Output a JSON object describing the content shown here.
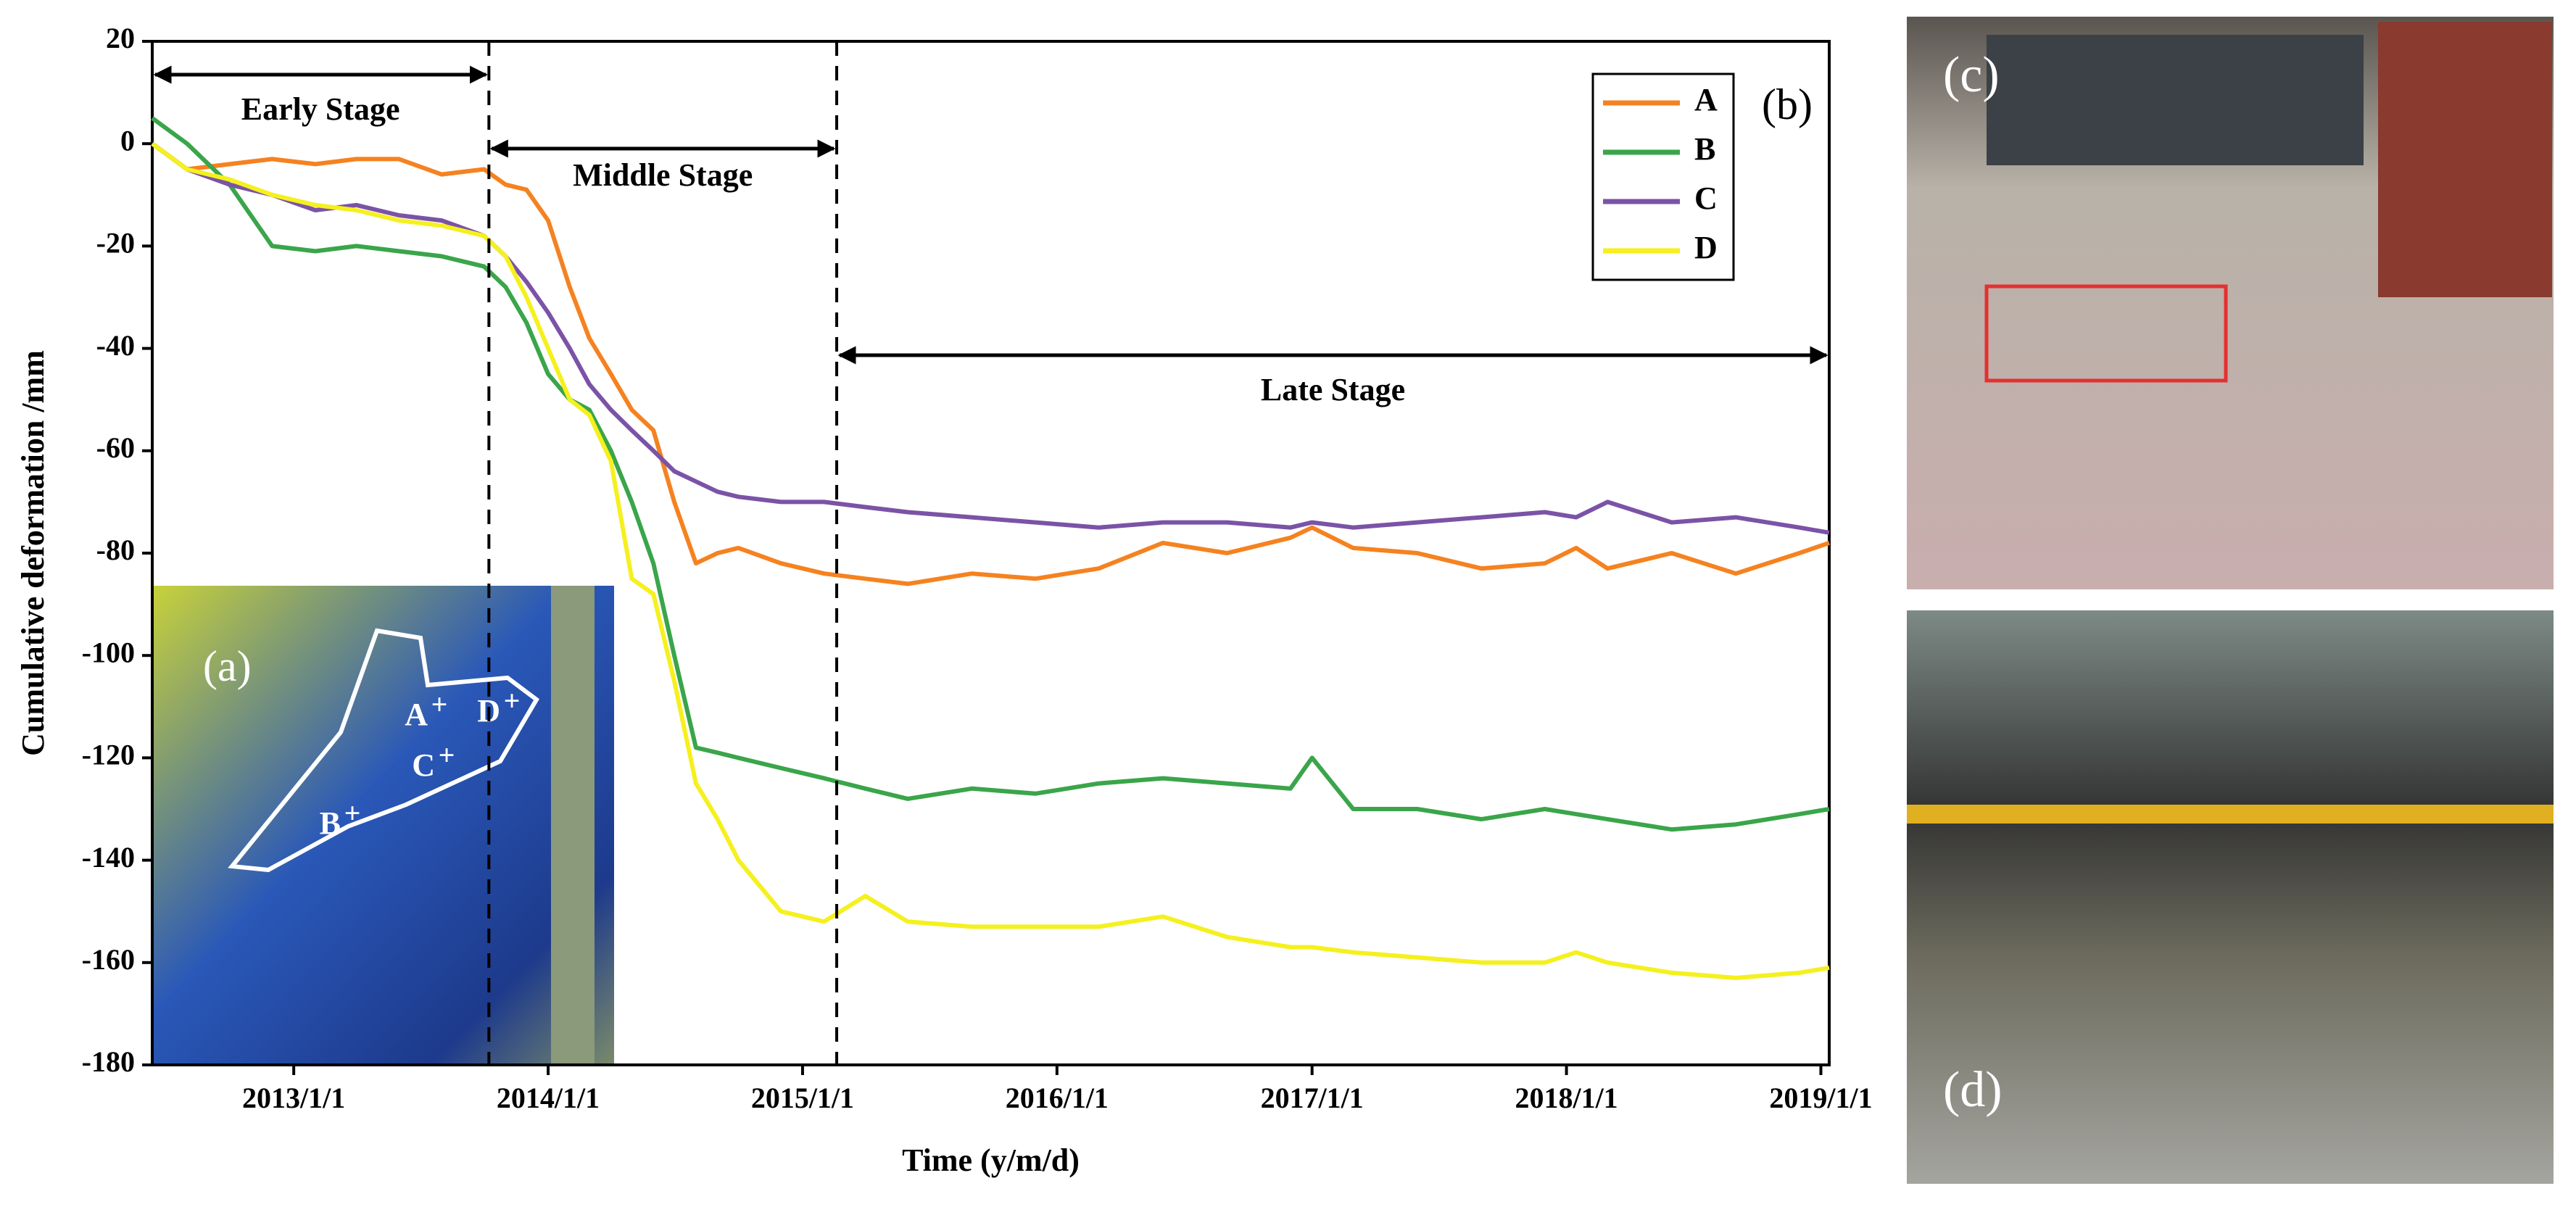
{
  "chart_data": {
    "type": "line",
    "xlabel": "Time (y/m/d)",
    "ylabel": "Cumulative deformation /mm",
    "panel_label": "(b)",
    "x": [
      "2012/6/12",
      "2012/8/1",
      "2012/10/1",
      "2012/12/1",
      "2013/2/1",
      "2013/4/1",
      "2013/6/1",
      "2013/8/1",
      "2013/10/1",
      "2013/11/1",
      "2013/12/1",
      "2014/1/1",
      "2014/2/1",
      "2014/3/1",
      "2014/4/1",
      "2014/5/1",
      "2014/6/1",
      "2014/7/1",
      "2014/8/1",
      "2014/9/1",
      "2014/10/1",
      "2014/12/1",
      "2015/2/1",
      "2015/4/1",
      "2015/6/1",
      "2015/9/1",
      "2015/12/1",
      "2016/3/1",
      "2016/6/1",
      "2016/9/1",
      "2016/12/1",
      "2017/1/1",
      "2017/3/1",
      "2017/6/1",
      "2017/9/1",
      "2017/12/1",
      "2018/1/15",
      "2018/3/1",
      "2018/6/1",
      "2018/9/1",
      "2018/12/1",
      "2019/1/13"
    ],
    "series": [
      {
        "name": "A",
        "color": "#f58220",
        "values": [
          0,
          -5,
          -4,
          -3,
          -4,
          -3,
          -3,
          -6,
          -5,
          -8,
          -9,
          -15,
          -28,
          -38,
          -45,
          -52,
          -56,
          -70,
          -82,
          -80,
          -79,
          -82,
          -84,
          -85,
          -86,
          -84,
          -85,
          -83,
          -78,
          -80,
          -77,
          -75,
          -79,
          -80,
          -83,
          -82,
          -79,
          -83,
          -80,
          -84,
          -80,
          -78
        ]
      },
      {
        "name": "B",
        "color": "#3aa54a",
        "values": [
          5,
          0,
          -8,
          -20,
          -21,
          -20,
          -21,
          -22,
          -24,
          -28,
          -35,
          -45,
          -50,
          -52,
          -60,
          -70,
          -82,
          -100,
          -118,
          -119,
          -120,
          -122,
          -124,
          -126,
          -128,
          -126,
          -127,
          -125,
          -124,
          -125,
          -126,
          -120,
          -130,
          -130,
          -132,
          -130,
          -131,
          -132,
          -134,
          -133,
          -131,
          -130
        ]
      },
      {
        "name": "C",
        "color": "#7b53a6",
        "values": [
          0,
          -5,
          -8,
          -10,
          -13,
          -12,
          -14,
          -15,
          -18,
          -22,
          -27,
          -33,
          -40,
          -47,
          -52,
          -56,
          -60,
          -64,
          -66,
          -68,
          -69,
          -70,
          -70,
          -71,
          -72,
          -73,
          -74,
          -75,
          -74,
          -74,
          -75,
          -74,
          -75,
          -74,
          -73,
          -72,
          -73,
          -70,
          -74,
          -73,
          -75,
          -76
        ]
      },
      {
        "name": "D",
        "color": "#f5f01e",
        "values": [
          0,
          -5,
          -7,
          -10,
          -12,
          -13,
          -15,
          -16,
          -18,
          -22,
          -30,
          -40,
          -50,
          -53,
          -62,
          -85,
          -88,
          -105,
          -125,
          -132,
          -140,
          -150,
          -152,
          -147,
          -152,
          -153,
          -153,
          -153,
          -151,
          -155,
          -157,
          -157,
          -158,
          -159,
          -160,
          -160,
          -158,
          -160,
          -162,
          -163,
          -162,
          -161
        ]
      }
    ],
    "xlim": [
      "2012/6/12",
      "2019/1/13"
    ],
    "xticks": [
      "2013/1/1",
      "2014/1/1",
      "2015/1/1",
      "2016/1/1",
      "2017/1/1",
      "2018/1/1",
      "2019/1/1"
    ],
    "ylim": [
      -180,
      20
    ],
    "yticks": [
      -180,
      -160,
      -140,
      -120,
      -100,
      -80,
      -60,
      -40,
      -20,
      0,
      20
    ],
    "legend": "upper right",
    "stages": [
      {
        "label": "Early Stage",
        "start": "2012/6/12",
        "end": "2013/10/8"
      },
      {
        "label": "Middle Stage",
        "start": "2013/10/8",
        "end": "2015/2/19"
      },
      {
        "label": "Late Stage",
        "start": "2015/2/19",
        "end": "2019/1/13"
      }
    ]
  },
  "panels": {
    "a": {
      "label": "(a)",
      "points": [
        "A",
        "B",
        "C",
        "D"
      ]
    },
    "c": {
      "label": "(c)"
    },
    "d": {
      "label": "(d)"
    }
  }
}
